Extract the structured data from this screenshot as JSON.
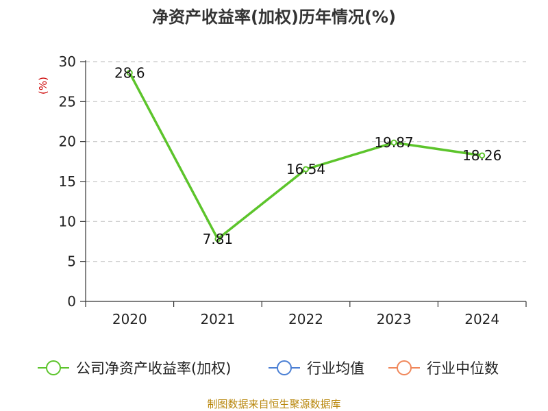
{
  "chart_data": {
    "type": "line",
    "title": "净资产收益率(加权)历年情况(%)",
    "xlabel": "",
    "ylabel": "(%)",
    "categories": [
      "2020",
      "2021",
      "2022",
      "2023",
      "2024"
    ],
    "ylim": [
      0,
      30
    ],
    "yticks": [
      0,
      5,
      10,
      15,
      20,
      25,
      30
    ],
    "grid": true,
    "legend_position": "bottom",
    "series": [
      {
        "name": "公司净资产收益率(加权)",
        "values": [
          28.6,
          7.81,
          16.54,
          19.87,
          18.26
        ],
        "labels": [
          "28.6",
          "7.81",
          "16.54",
          "19.87",
          "18.26"
        ],
        "color": "#5cc42b"
      }
    ],
    "legend": [
      {
        "name": "公司净资产收益率(加权)",
        "color": "#5cc42b"
      },
      {
        "name": "行业均值",
        "color": "#4a7fd4"
      },
      {
        "name": "行业中位数",
        "color": "#f0875a"
      }
    ],
    "source": "制图数据来自恒生聚源数据库"
  }
}
